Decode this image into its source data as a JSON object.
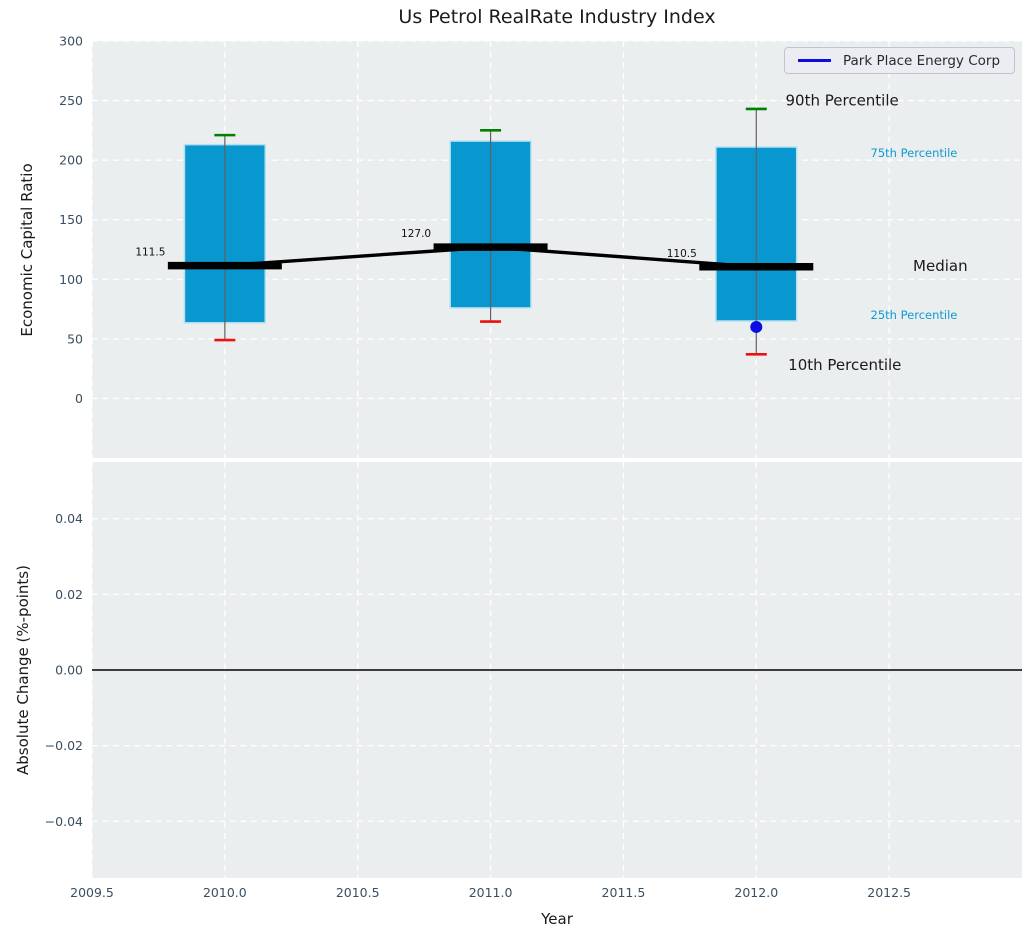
{
  "figure": {
    "title": "Us Petrol RealRate Industry Index",
    "xlabel": "Year",
    "top_ylabel": "Economic Capital Ratio",
    "bottom_ylabel": "Absolute Change (%-points)",
    "legend_label": "Park Place Energy Corp"
  },
  "chart_data": {
    "type": "boxplot",
    "title": "Us Petrol RealRate Industry Index",
    "xlabel": "Year",
    "xlim": [
      2009.5,
      2013.0
    ],
    "xticks": {
      "values": [
        2009.5,
        2010.0,
        2010.5,
        2011.0,
        2011.5,
        2012.0,
        2012.5
      ],
      "labels": [
        "2009.5",
        "2010.0",
        "2010.5",
        "2011.0",
        "2011.5",
        "2012.0",
        "2012.5"
      ]
    },
    "panels": [
      {
        "name": "economic-capital-ratio",
        "ylabel": "Economic Capital Ratio",
        "ylim": [
          -50,
          300
        ],
        "yticks": {
          "values": [
            0,
            50,
            100,
            150,
            200,
            250,
            300
          ],
          "labels": [
            "0",
            "50",
            "100",
            "150",
            "200",
            "250",
            "300"
          ]
        },
        "grid": true,
        "boxes": [
          {
            "year": 2010,
            "p10": 49,
            "p25": 63.5,
            "median": 111.5,
            "p75": 213,
            "p90": 221,
            "median_label": "111.5"
          },
          {
            "year": 2011,
            "p10": 64.5,
            "p25": 76,
            "median": 127.0,
            "p75": 216,
            "p90": 225,
            "median_label": "127.0"
          },
          {
            "year": 2012,
            "p10": 37,
            "p25": 65,
            "median": 110.5,
            "p75": 211,
            "p90": 243,
            "median_label": "110.5"
          }
        ],
        "company_series": {
          "name": "Park Place Energy Corp",
          "points": [
            {
              "year": 2012,
              "value": 60
            }
          ]
        },
        "annotations": [
          {
            "text": "90th Percentile",
            "year": 2012.11,
            "value": 250,
            "style": "large-dark"
          },
          {
            "text": "75th Percentile",
            "year": 2012.43,
            "value": 206,
            "style": "small-cyan"
          },
          {
            "text": "Median",
            "year": 2012.59,
            "value": 111,
            "style": "large-dark"
          },
          {
            "text": "25th Percentile",
            "year": 2012.43,
            "value": 70,
            "style": "small-cyan"
          },
          {
            "text": "10th Percentile",
            "year": 2012.12,
            "value": 28,
            "style": "large-dark"
          }
        ]
      },
      {
        "name": "absolute-change",
        "ylabel": "Absolute Change (%-points)",
        "ylim": [
          -0.055,
          0.055
        ],
        "yticks": {
          "values": [
            0.04,
            0.02,
            0.0,
            -0.02,
            -0.04
          ],
          "labels": [
            "0.04",
            "0.02",
            "0.00",
            "−0.02",
            "−0.04"
          ]
        },
        "grid": true,
        "zero_line": 0.0
      }
    ],
    "legend": {
      "label": "Park Place Energy Corp",
      "position": "upper right"
    },
    "colors": {
      "box_fill": "#0997d0",
      "box_edge": "#b5e0f2",
      "whisker": "#606060",
      "cap_high": "#008000",
      "cap_low": "#ed1111",
      "median_line": "#000000",
      "company_point": "#0d0de0",
      "plot_bg": "#eaeeef",
      "grid": "#ffffff",
      "tick_text": "#3b4f63",
      "annotation_cyan": "#0f9ad2",
      "text_dark": "#1a1a1a"
    }
  }
}
